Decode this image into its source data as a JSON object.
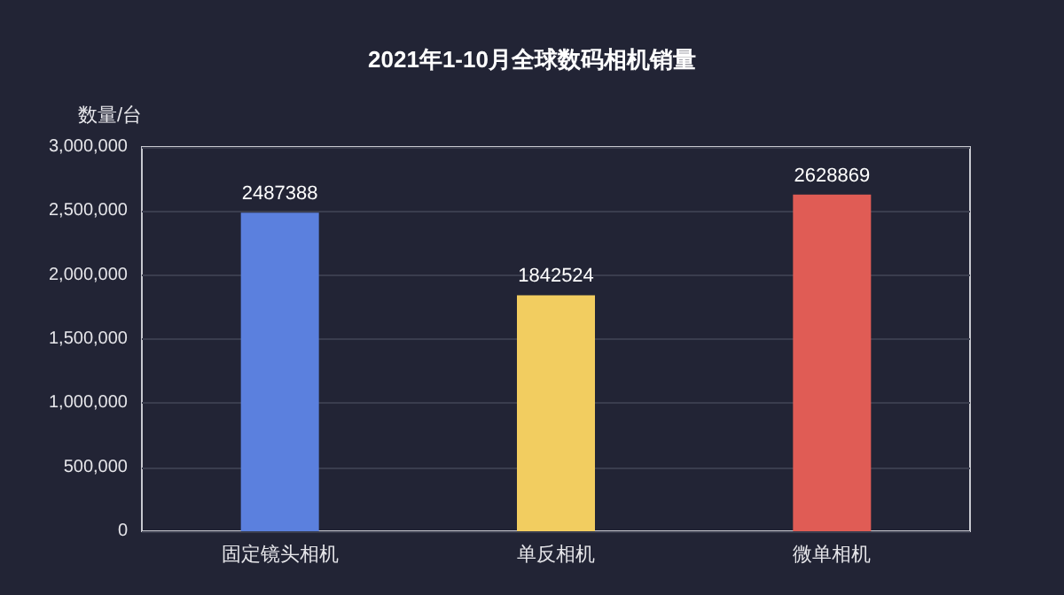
{
  "chart_data": {
    "type": "bar",
    "title": "2021年1-10月全球数码相机销量",
    "ylabel": "数量/台",
    "categories": [
      "固定镜头相机",
      "单反相机",
      "微单相机"
    ],
    "values": [
      2487388,
      1842524,
      2628869
    ],
    "colors": [
      "#5b80de",
      "#f2cd60",
      "#e05c55"
    ],
    "ylim": [
      0,
      3000000
    ],
    "yticks": [
      0,
      {
        "value": 500000,
        "label": "500,000"
      },
      {
        "value": 1000000,
        "label": "1,000,000"
      },
      {
        "value": 1500000,
        "label": "1,500,000"
      },
      {
        "value": 2000000,
        "label": "2,000,000"
      },
      {
        "value": 2500000,
        "label": "2,500,000"
      },
      {
        "value": 3000000,
        "label": "3,000,000"
      }
    ],
    "grid": "y",
    "data_labels": true
  }
}
